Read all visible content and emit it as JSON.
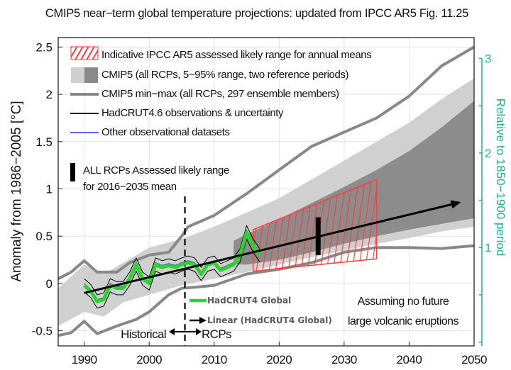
{
  "chart_data": {
    "type": "line",
    "title": "CMIP5 near−term global temperature projections: updated from IPCC AR5 Fig. 11.25",
    "ylabel": "Anomaly from 1986−2005  [°C]",
    "ylabel_right": "Relative to 1850−1900 period",
    "xlim": [
      1986,
      2050
    ],
    "ylim": [
      -0.66,
      2.6
    ],
    "x_ticks": [
      1990,
      2000,
      2010,
      2020,
      2030,
      2040,
      2050
    ],
    "y_ticks": [
      -0.5,
      0,
      0.5,
      1,
      1.5,
      2,
      2.5
    ],
    "y_tick_labels": [
      "-0.5",
      "0",
      "0.5",
      "1",
      "1.5",
      "2",
      "2.5"
    ],
    "right_axis": {
      "offset": 0.62,
      "ticks": [
        1,
        2,
        3
      ],
      "tick_labels": [
        "1",
        "2",
        "3"
      ],
      "color": "#1fae96"
    },
    "grid": true,
    "legend": {
      "placement": "top-left",
      "items": [
        {
          "label": "Indicative IPCC AR5 assessed likely range for annual means",
          "kind": "hatch",
          "color": "#ff3b3b"
        },
        {
          "label": "CMIP5 (all RCPs, 5−95% range, two reference periods)",
          "kind": "patches",
          "colors": [
            "#cfcfcf",
            "#8a8a8a"
          ]
        },
        {
          "label": "CMIP5 min−max (all RCPs, 297 ensemble members)",
          "kind": "line",
          "color": "#888888"
        },
        {
          "label": "HadCRUT4.6 observations & uncertainty",
          "kind": "line",
          "color": "#000000"
        },
        {
          "label": "Other observational datasets",
          "kind": "line",
          "color": "#2233ee"
        }
      ]
    },
    "cmip5_light_band": {
      "color": "#d0d0d0",
      "x": [
        1986,
        1990,
        1993,
        1996,
        2000,
        2005,
        2010,
        2015,
        2020,
        2025,
        2030,
        2035,
        2040,
        2045,
        2050
      ],
      "lower": [
        -0.45,
        -0.3,
        -0.35,
        -0.2,
        -0.12,
        -0.02,
        0.05,
        0.12,
        0.2,
        0.28,
        0.35,
        0.42,
        0.48,
        0.55,
        0.6
      ],
      "upper": [
        -0.05,
        0.2,
        0.1,
        0.22,
        0.38,
        0.47,
        0.6,
        0.75,
        0.9,
        1.1,
        1.3,
        1.5,
        1.7,
        1.95,
        2.17
      ]
    },
    "cmip5_dark_band": {
      "color": "#8c8c8c",
      "x": [
        2013,
        2015,
        2020,
        2025,
        2030,
        2035,
        2040,
        2045,
        2050
      ],
      "lower": [
        0.2,
        0.2,
        0.25,
        0.33,
        0.42,
        0.5,
        0.57,
        0.63,
        0.69
      ],
      "upper": [
        0.45,
        0.52,
        0.68,
        0.85,
        1.02,
        1.2,
        1.4,
        1.65,
        1.93
      ]
    },
    "cmip5_max": {
      "color": "#888888",
      "x": [
        1986,
        1988,
        1990,
        1992,
        1995,
        1997,
        2000,
        2003,
        2005,
        2006,
        2010,
        2015,
        2020,
        2025,
        2030,
        2035,
        2040,
        2045,
        2050
      ],
      "y": [
        0.05,
        0.12,
        0.24,
        0.12,
        0.12,
        0.22,
        0.3,
        0.33,
        0.5,
        0.6,
        0.72,
        0.95,
        1.2,
        1.45,
        1.6,
        1.75,
        1.98,
        2.3,
        2.5
      ]
    },
    "cmip5_min": {
      "color": "#888888",
      "x": [
        1986,
        1988,
        1990,
        1992,
        1995,
        1998,
        2000,
        2003,
        2005,
        2007,
        2010,
        2015,
        2020,
        2025,
        2030,
        2035,
        2040,
        2045,
        2050
      ],
      "y": [
        -0.55,
        -0.52,
        -0.4,
        -0.53,
        -0.45,
        -0.38,
        -0.3,
        -0.12,
        -0.05,
        -0.04,
        -0.02,
        0.1,
        0.15,
        0.22,
        0.33,
        0.38,
        0.38,
        0.37,
        0.4
      ]
    },
    "hadcrut4_global": {
      "name": "HadCRUT4 Global",
      "color": "#2ed12e",
      "x": [
        1990,
        1991,
        1992,
        1993,
        1994,
        1995,
        1996,
        1997,
        1998,
        1999,
        2000,
        2001,
        2002,
        2003,
        2004,
        2005,
        2006,
        2007,
        2008,
        2009,
        2010,
        2011,
        2012,
        2013,
        2014,
        2015,
        2016,
        2017
      ],
      "y": [
        -0.02,
        -0.08,
        -0.19,
        -0.17,
        -0.02,
        -0.05,
        -0.05,
        0.05,
        0.2,
        0.05,
        0.0,
        0.2,
        0.17,
        0.19,
        0.17,
        0.2,
        0.22,
        0.2,
        0.1,
        0.2,
        0.22,
        0.14,
        0.17,
        0.2,
        0.3,
        0.54,
        0.4,
        0.3
      ]
    },
    "obs_uncertainty": 0.07,
    "other_obs_color": "#2233ee",
    "linear_trend": {
      "name": "Linear (HadCRUT4 Global)",
      "x": [
        1990,
        2048
      ],
      "y": [
        -0.1,
        0.86
      ],
      "color": "#000000"
    },
    "assessed_range": {
      "color": "#ff3b3b",
      "x": [
        2016,
        2035
      ],
      "lower": [
        0.13,
        0.26
      ],
      "upper": [
        0.57,
        1.1
      ]
    },
    "mean_range_bar": {
      "x": 2026,
      "lower": 0.3,
      "upper": 0.7
    },
    "historical_rcp_split": 2005.5
  },
  "annotations": {
    "all_rcps_line1": "ALL RCPs Assessed likely range",
    "all_rcps_line2": "for 2016−2035 mean",
    "hadcrut_global": "HadCRUT4 Global",
    "linear": "Linear (HadCRUT4 Global)",
    "historical": "Historical",
    "rcps": "RCPs",
    "volcanic_line1": "Assuming no future",
    "volcanic_line2": "large volcanic eruptions"
  }
}
